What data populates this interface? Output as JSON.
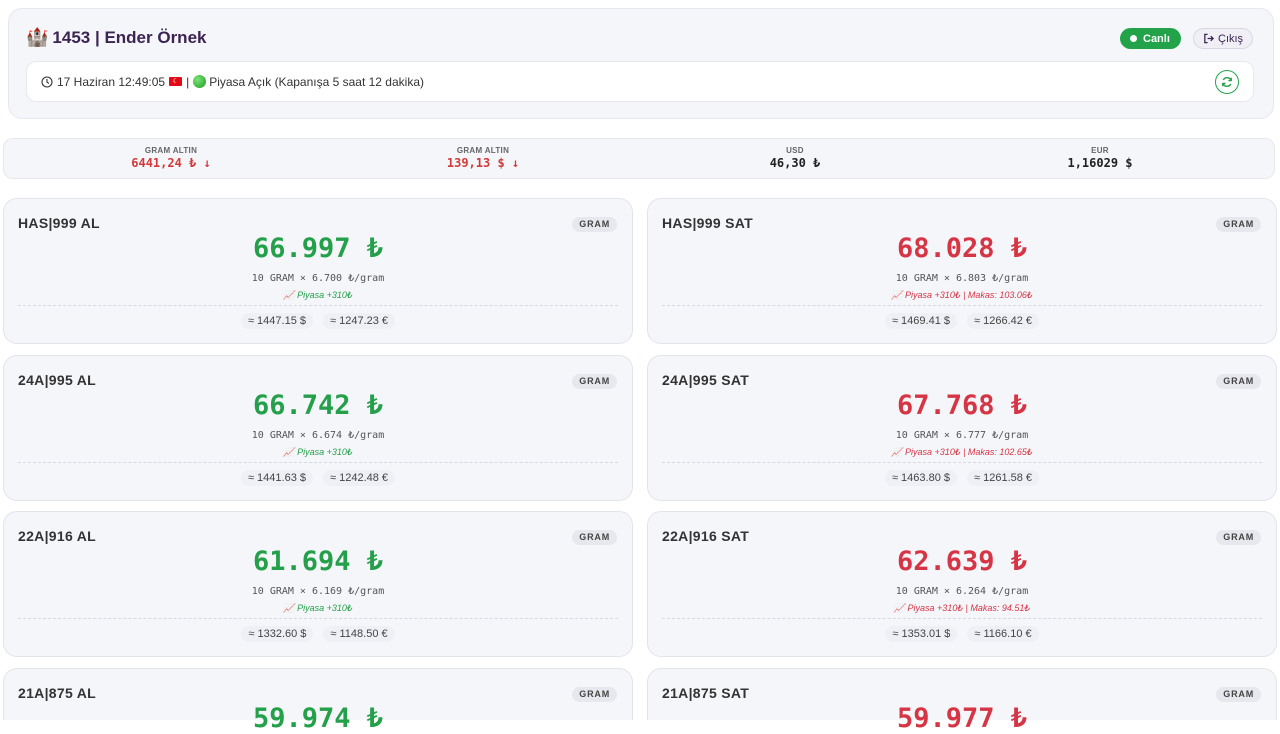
{
  "header": {
    "icon": "castle-icon",
    "title": "1453 | Ender Örnek",
    "live_label": "Canlı",
    "logout_label": "Çıkış",
    "datetime": "17 Haziran 12:49:05",
    "flag": "TR",
    "separator": "|",
    "market_status": "Piyasa Açık (Kapanışa 5 saat 12 dakika)"
  },
  "ticker": [
    {
      "label": "GRAM ALTIN",
      "value": "6441,24 ₺ ↓"
    },
    {
      "label": "GRAM ALTIN",
      "value": "139,13 $ ↓"
    },
    {
      "label": "USD",
      "value": "46,30 ₺"
    },
    {
      "label": "EUR",
      "value": "1,16029 $"
    }
  ],
  "colors": {
    "buy": "#24a04a",
    "sell": "#d63545",
    "live": "#22a34a"
  },
  "cards": [
    {
      "title": "HAS|999 AL",
      "unit": "GRAM",
      "price": "66.997 ₺",
      "calc": "10 GRAM × 6.700 ₺/gram",
      "note": "📈 Piyasa +310₺",
      "usd": "≈ 1447.15 $",
      "eur": "≈ 1247.23 €"
    },
    {
      "title": "HAS|999 SAT",
      "unit": "GRAM",
      "price": "68.028 ₺",
      "calc": "10 GRAM × 6.803 ₺/gram",
      "note": "📈 Piyasa +310₺ | Makas: 103.06₺",
      "usd": "≈ 1469.41 $",
      "eur": "≈ 1266.42 €"
    },
    {
      "title": "24A|995 AL",
      "unit": "GRAM",
      "price": "66.742 ₺",
      "calc": "10 GRAM × 6.674 ₺/gram",
      "note": "📈 Piyasa +310₺",
      "usd": "≈ 1441.63 $",
      "eur": "≈ 1242.48 €"
    },
    {
      "title": "24A|995 SAT",
      "unit": "GRAM",
      "price": "67.768 ₺",
      "calc": "10 GRAM × 6.777 ₺/gram",
      "note": "📈 Piyasa +310₺ | Makas: 102.65₺",
      "usd": "≈ 1463.80 $",
      "eur": "≈ 1261.58 €"
    },
    {
      "title": "22A|916 AL",
      "unit": "GRAM",
      "price": "61.694 ₺",
      "calc": "10 GRAM × 6.169 ₺/gram",
      "note": "📈 Piyasa +310₺",
      "usd": "≈ 1332.60 $",
      "eur": "≈ 1148.50 €"
    },
    {
      "title": "22A|916 SAT",
      "unit": "GRAM",
      "price": "62.639 ₺",
      "calc": "10 GRAM × 6.264 ₺/gram",
      "note": "📈 Piyasa +310₺ | Makas: 94.51₺",
      "usd": "≈ 1353.01 $",
      "eur": "≈ 1166.10 €"
    },
    {
      "title": "21A|875 AL",
      "unit": "GRAM",
      "price": "59.974 ₺"
    },
    {
      "title": "21A|875 SAT",
      "unit": "GRAM",
      "price": "59.977 ₺"
    }
  ]
}
